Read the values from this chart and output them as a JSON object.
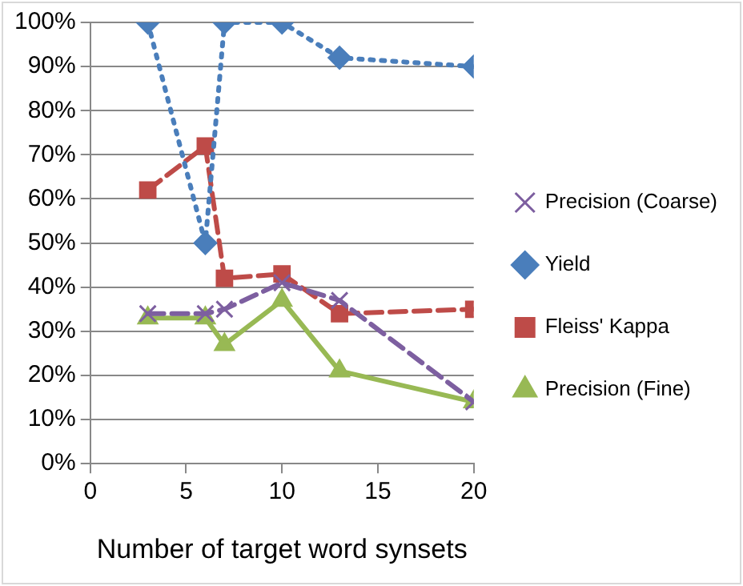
{
  "chart_data": {
    "type": "line",
    "xlabel": "Number of target word synsets",
    "x": [
      3,
      6,
      7,
      10,
      13,
      20
    ],
    "xlim": [
      0,
      20
    ],
    "xticks": [
      0,
      5,
      10,
      15,
      20
    ],
    "ylim": [
      0,
      100
    ],
    "yticks": [
      {
        "value": 0,
        "label": "0%"
      },
      {
        "value": 10,
        "label": "10%"
      },
      {
        "value": 20,
        "label": "20%"
      },
      {
        "value": 30,
        "label": "30%"
      },
      {
        "value": 40,
        "label": "40%"
      },
      {
        "value": 50,
        "label": "50%"
      },
      {
        "value": 60,
        "label": "60%"
      },
      {
        "value": 70,
        "label": "70%"
      },
      {
        "value": 80,
        "label": "80%"
      },
      {
        "value": 90,
        "label": "90%"
      },
      {
        "value": 100,
        "label": "100%"
      }
    ],
    "grid": "y",
    "legend": "right",
    "series": [
      {
        "name": "Yield",
        "color": "#4a7ebb",
        "marker": "diamond",
        "line_style": "dotted",
        "values": [
          100,
          50,
          100,
          100,
          92,
          90
        ]
      },
      {
        "name": "Fleiss' Kappa",
        "color": "#be4b48",
        "marker": "square",
        "line_style": "dashed",
        "values": [
          62,
          72,
          42,
          43,
          34,
          35
        ]
      },
      {
        "name": "Precision (Coarse)",
        "color": "#7d5fa0",
        "marker": "cross",
        "line_style": "dashed",
        "values": [
          34,
          34,
          35,
          41,
          37,
          14
        ]
      },
      {
        "name": "Precision (Fine)",
        "color": "#98b954",
        "marker": "triangle",
        "line_style": "solid",
        "values": [
          33,
          33,
          27,
          37,
          21,
          14
        ]
      }
    ]
  }
}
